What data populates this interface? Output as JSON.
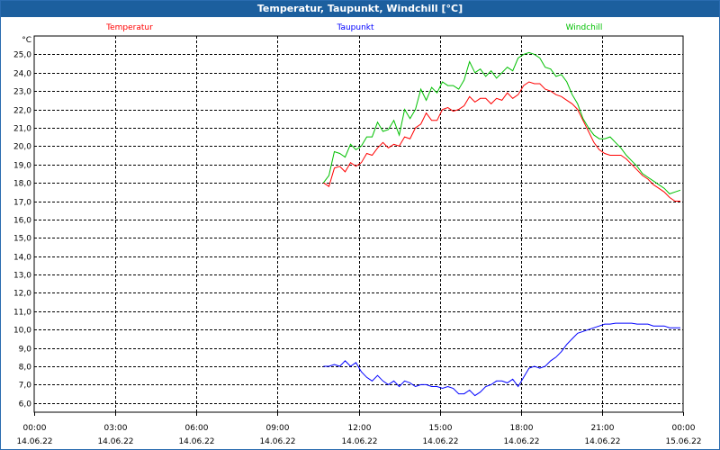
{
  "window": {
    "title": "Temperatur, Taupunkt, Windchill [°C]"
  },
  "chart_data": {
    "type": "line",
    "title": "Temperatur, Taupunkt, Windchill [°C]",
    "ylabel": "°C",
    "ylim": [
      5.5,
      26.0
    ],
    "xlim": [
      0,
      24
    ],
    "grid": true,
    "y_ticks": [
      "6,0",
      "7,0",
      "8,0",
      "9,0",
      "10,0",
      "11,0",
      "12,0",
      "13,0",
      "14,0",
      "15,0",
      "16,0",
      "17,0",
      "18,0",
      "19,0",
      "20,0",
      "21,0",
      "22,0",
      "23,0",
      "24,0",
      "25,0"
    ],
    "x_ticks": [
      {
        "time": "00:00",
        "date": "14.06.22"
      },
      {
        "time": "03:00",
        "date": "14.06.22"
      },
      {
        "time": "06:00",
        "date": "14.06.22"
      },
      {
        "time": "09:00",
        "date": "14.06.22"
      },
      {
        "time": "12:00",
        "date": "14.06.22"
      },
      {
        "time": "15:00",
        "date": "14.06.22"
      },
      {
        "time": "18:00",
        "date": "14.06.22"
      },
      {
        "time": "21:00",
        "date": "14.06.22"
      },
      {
        "time": "00:00",
        "date": "15.06.22"
      }
    ],
    "series": [
      {
        "name": "Temperatur",
        "color": "#ff0000",
        "x": [
          10.7,
          10.9,
          11.1,
          11.3,
          11.5,
          11.7,
          11.9,
          12.1,
          12.3,
          12.5,
          12.7,
          12.9,
          13.1,
          13.3,
          13.5,
          13.7,
          13.9,
          14.1,
          14.3,
          14.5,
          14.7,
          14.9,
          15.1,
          15.3,
          15.5,
          15.7,
          15.9,
          16.1,
          16.3,
          16.5,
          16.7,
          16.9,
          17.1,
          17.3,
          17.5,
          17.7,
          17.9,
          18.1,
          18.3,
          18.5,
          18.7,
          18.9,
          19.1,
          19.3,
          19.5,
          19.7,
          19.9,
          20.1,
          20.3,
          20.5,
          20.7,
          20.9,
          21.1,
          21.3,
          21.5,
          21.7,
          21.9,
          22.1,
          22.3,
          22.5,
          22.7,
          22.9,
          23.1,
          23.3,
          23.5,
          23.7,
          23.9
        ],
        "values": [
          18.0,
          17.8,
          18.8,
          18.9,
          18.6,
          19.1,
          18.9,
          19.1,
          19.6,
          19.5,
          19.9,
          20.2,
          19.9,
          20.1,
          20.0,
          20.5,
          20.4,
          21.0,
          21.2,
          21.8,
          21.4,
          21.4,
          22.0,
          22.1,
          21.9,
          22.0,
          22.2,
          22.7,
          22.4,
          22.6,
          22.6,
          22.3,
          22.6,
          22.5,
          22.9,
          22.6,
          22.8,
          23.3,
          23.5,
          23.4,
          23.4,
          23.1,
          23.0,
          22.8,
          22.7,
          22.5,
          22.3,
          22.0,
          21.4,
          20.8,
          20.2,
          19.8,
          19.6,
          19.5,
          19.5,
          19.5,
          19.3,
          19.0,
          18.7,
          18.4,
          18.2,
          17.9,
          17.7,
          17.5,
          17.2,
          17.0,
          17.0
        ]
      },
      {
        "name": "Taupunkt",
        "color": "#0000ff",
        "x": [
          10.7,
          10.9,
          11.1,
          11.3,
          11.5,
          11.7,
          11.9,
          12.1,
          12.3,
          12.5,
          12.7,
          12.9,
          13.1,
          13.3,
          13.5,
          13.7,
          13.9,
          14.1,
          14.3,
          14.5,
          14.7,
          14.9,
          15.1,
          15.3,
          15.5,
          15.7,
          15.9,
          16.1,
          16.3,
          16.5,
          16.7,
          16.9,
          17.1,
          17.3,
          17.5,
          17.7,
          17.9,
          18.1,
          18.3,
          18.5,
          18.7,
          18.9,
          19.1,
          19.3,
          19.5,
          19.7,
          19.9,
          20.1,
          20.3,
          20.5,
          20.7,
          20.9,
          21.1,
          21.3,
          21.5,
          21.7,
          21.9,
          22.1,
          22.3,
          22.5,
          22.7,
          22.9,
          23.1,
          23.3,
          23.5,
          23.7,
          23.9
        ],
        "values": [
          8.0,
          8.0,
          8.1,
          8.0,
          8.3,
          8.0,
          8.2,
          7.7,
          7.4,
          7.2,
          7.5,
          7.2,
          7.0,
          7.2,
          6.9,
          7.2,
          7.1,
          6.9,
          7.0,
          7.0,
          6.9,
          6.9,
          6.8,
          6.9,
          6.8,
          6.5,
          6.5,
          6.7,
          6.4,
          6.6,
          6.9,
          7.0,
          7.2,
          7.2,
          7.1,
          7.3,
          6.9,
          7.4,
          7.9,
          8.0,
          7.9,
          8.0,
          8.3,
          8.5,
          8.8,
          9.2,
          9.5,
          9.8,
          9.9,
          10.0,
          10.1,
          10.2,
          10.3,
          10.3,
          10.35,
          10.35,
          10.35,
          10.35,
          10.3,
          10.3,
          10.3,
          10.2,
          10.2,
          10.2,
          10.1,
          10.1,
          10.1
        ]
      },
      {
        "name": "Windchill",
        "color": "#00c000",
        "x": [
          10.7,
          10.9,
          11.1,
          11.3,
          11.5,
          11.7,
          11.9,
          12.1,
          12.3,
          12.5,
          12.7,
          12.9,
          13.1,
          13.3,
          13.5,
          13.7,
          13.9,
          14.1,
          14.3,
          14.5,
          14.7,
          14.9,
          15.1,
          15.3,
          15.5,
          15.7,
          15.9,
          16.1,
          16.3,
          16.5,
          16.7,
          16.9,
          17.1,
          17.3,
          17.5,
          17.7,
          17.9,
          18.1,
          18.3,
          18.5,
          18.7,
          18.9,
          19.1,
          19.3,
          19.5,
          19.7,
          19.9,
          20.1,
          20.3,
          20.5,
          20.7,
          20.9,
          21.1,
          21.3,
          21.5,
          21.7,
          21.9,
          22.1,
          22.3,
          22.5,
          22.7,
          22.9,
          23.1,
          23.3,
          23.5,
          23.7,
          23.9
        ],
        "values": [
          18.0,
          18.4,
          19.7,
          19.6,
          19.4,
          20.1,
          19.8,
          20.0,
          20.5,
          20.5,
          21.3,
          20.8,
          20.9,
          21.4,
          20.6,
          22.0,
          21.5,
          22.0,
          23.1,
          22.5,
          23.2,
          22.9,
          23.5,
          23.3,
          23.3,
          23.1,
          23.6,
          24.6,
          24.0,
          24.2,
          23.8,
          24.1,
          23.7,
          24.0,
          24.3,
          24.1,
          24.8,
          25.0,
          25.1,
          25.0,
          24.8,
          24.3,
          24.2,
          23.8,
          23.9,
          23.5,
          22.8,
          22.3,
          21.5,
          21.0,
          20.6,
          20.4,
          20.4,
          20.5,
          20.2,
          19.9,
          19.5,
          19.2,
          18.9,
          18.5,
          18.3,
          18.1,
          17.9,
          17.7,
          17.4,
          17.5,
          17.6
        ]
      }
    ]
  }
}
